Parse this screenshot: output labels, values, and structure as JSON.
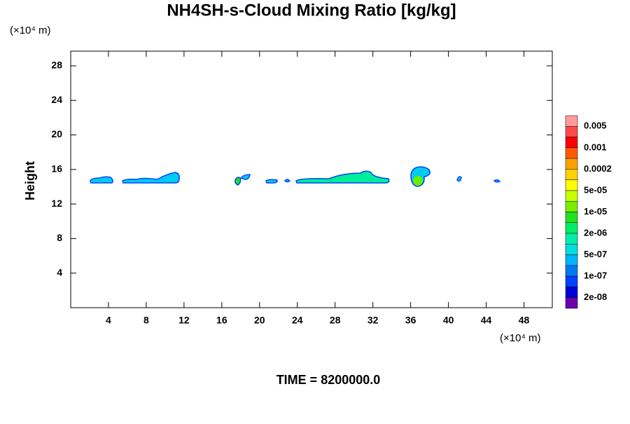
{
  "chart_data": {
    "type": "contour",
    "title": "NH4SH-s-Cloud Mixing Ratio [kg/kg]",
    "x_unit": "(×10⁴ m)",
    "y_unit": "(×10⁴ m)",
    "y_label": "Height",
    "footer": "TIME = 8200000.0",
    "xlim": [
      0,
      51
    ],
    "xticks": [
      4,
      8,
      12,
      16,
      20,
      24,
      28,
      32,
      36,
      40,
      44,
      48
    ],
    "ylim": [
      0,
      29.7
    ],
    "yticks": [
      4,
      8,
      12,
      16,
      20,
      24,
      28
    ],
    "colorbar": {
      "colors": [
        "#ff9b9b",
        "#ff4a4a",
        "#ff0000",
        "#ff5a00",
        "#ffa000",
        "#ffd200",
        "#ffff00",
        "#c8ff00",
        "#78f000",
        "#22e022",
        "#00ee66",
        "#00eeaa",
        "#00dddd",
        "#00b4ff",
        "#0078ee",
        "#0040ff",
        "#0000d8",
        "#6a00a8"
      ],
      "labels": [
        "0.005",
        "0.001",
        "0.0002",
        "5e-05",
        "1e-05",
        "2e-06",
        "5e-07",
        "1e-07",
        "2e-08"
      ]
    }
  }
}
